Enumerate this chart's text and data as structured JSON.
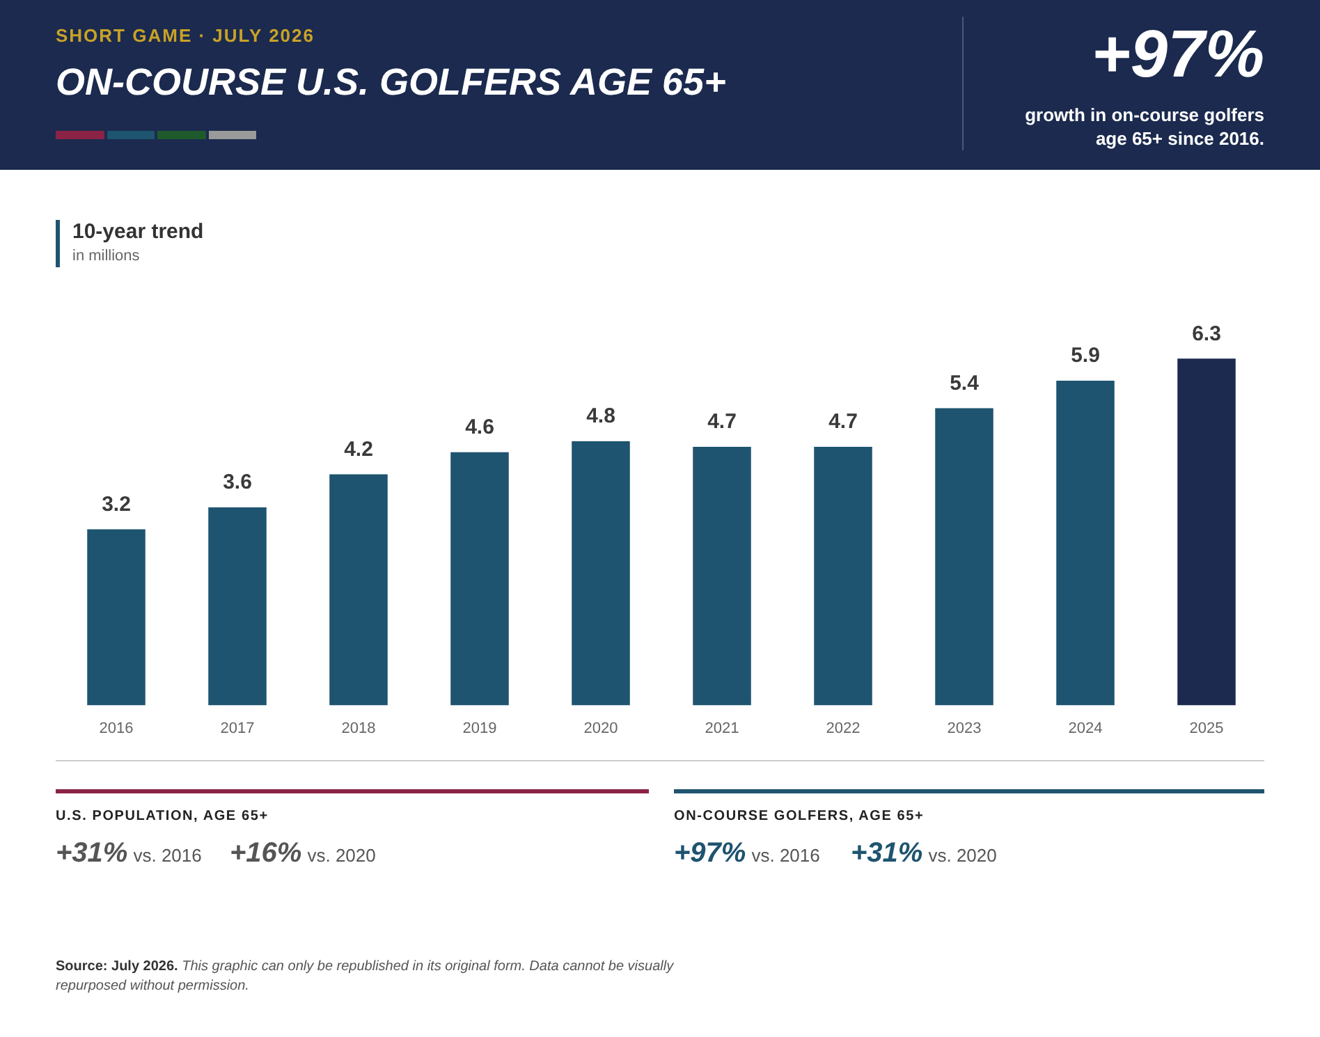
{
  "chart_data": {
    "type": "bar",
    "title": "ON-COURSE U.S. GOLFERS AGE 65+",
    "subtitle": "SHORT GAME · JULY 2026",
    "categories": [
      "2016",
      "2017",
      "2018",
      "2019",
      "2020",
      "2021",
      "2022",
      "2023",
      "2024",
      "2025"
    ],
    "values": [
      3.2,
      3.6,
      4.2,
      4.6,
      4.8,
      4.7,
      4.7,
      5.4,
      5.9,
      6.3
    ],
    "colors": [
      "#1e5470",
      "#1e5470",
      "#1e5470",
      "#1e5470",
      "#1e5470",
      "#1e5470",
      "#1e5470",
      "#1e5470",
      "#1e5470",
      "#1b2a4e"
    ],
    "data_labels": true,
    "grid": false,
    "legend": false,
    "tick_labels": "x",
    "annotations": [
      "+97%",
      "growth in on-course golfers age 65+ since 2016.",
      "10-year trend",
      "U.S. POPULATION, AGE 65+",
      "+31% vs. 2016",
      "+16% vs. 2020",
      "ON-COURSE GOLFERS, AGE 65+",
      "+97% vs. 2016",
      "+31% vs. 2020",
      "Source: July 2026.",
      "This graphic can only be republished in its original form. Data cannot be visually repurposed without permission.",
      "in millions"
    ]
  }
}
